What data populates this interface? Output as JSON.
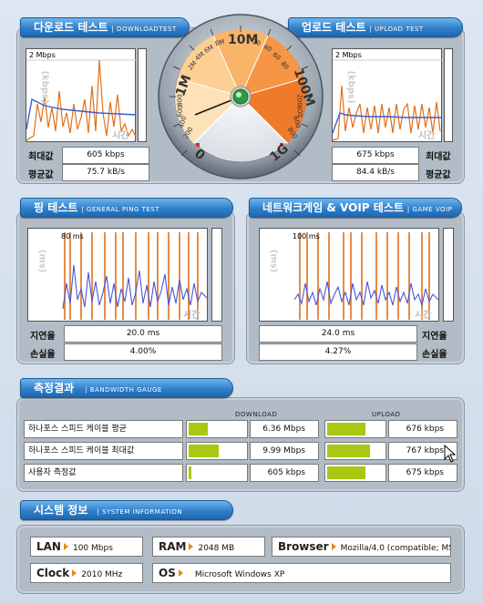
{
  "tabs": {
    "download": {
      "title": "다운로드 테스트",
      "sub": "| DOWNLOADTEST"
    },
    "upload": {
      "title": "업로드 테스트",
      "sub": "| UPLOAD TEST"
    },
    "ping": {
      "title": "핑 테스트",
      "sub": "| GENERAL PING TEST"
    },
    "voip": {
      "title": "네트워크게임 & VOIP 테스트",
      "sub": "| GAME VOIP"
    },
    "results": {
      "title": "측정결과",
      "sub": "| BANDWIDTH GAUGE"
    },
    "sysinfo": {
      "title": "시스템 정보",
      "sub": "| SYSTEM INFORMATION"
    }
  },
  "download": {
    "scale": "2 Mbps",
    "axis_unit": "(kbps)",
    "axis_time": "시간",
    "max_label": "최대값",
    "max_value": "605 kbps",
    "avg_label": "평균값",
    "avg_value": "75.7 kB/s"
  },
  "upload": {
    "scale": "2 Mbps",
    "axis_unit": "(kbps)",
    "axis_time": "시간",
    "max_label": "최대값",
    "max_value": "675 kbps",
    "avg_label": "평균값",
    "avg_value": "84.4 kB/s"
  },
  "ping": {
    "scale": "80 ms",
    "axis_unit": "(ms)",
    "axis_time": "시간",
    "latency_label": "지연율",
    "latency_value": "20.0 ms",
    "loss_label": "손실율",
    "loss_value": "4.00%"
  },
  "voip": {
    "scale": "100 ms",
    "axis_unit": "(ms)",
    "axis_time": "시간",
    "latency_label": "지연율",
    "latency_value": "24.0 ms",
    "loss_label": "손실율",
    "loss_value": "4.27%"
  },
  "gauge": {
    "labels": [
      "0",
      "1M",
      "10M",
      "100M",
      "1G"
    ],
    "small_labels": [
      "200",
      "400",
      "600",
      "800",
      "2M",
      "4M",
      "6M",
      "8M",
      "20",
      "40",
      "60",
      "80",
      "200",
      "400",
      "600",
      "800"
    ],
    "needle_fraction": 0.62
  },
  "results": {
    "col_download": "DOWNLOAD",
    "col_upload": "UPLOAD",
    "rows": [
      {
        "label": "하나포스 스피드 케이블 평균",
        "down": "6.36 Mbps",
        "down_fill": 0.33,
        "up": "676 kbps",
        "up_fill": 0.65
      },
      {
        "label": "하나포스 스피드 케이블 최대값",
        "down": "9.99 Mbps",
        "down_fill": 0.52,
        "up": "767 kbps",
        "up_fill": 0.74
      },
      {
        "label": "사용자 측정값",
        "down": "605 kbps",
        "down_fill": 0.04,
        "up": "675 kbps",
        "up_fill": 0.65
      }
    ]
  },
  "sysinfo": {
    "lan_label": "LAN",
    "lan_value": "100 Mbps",
    "ram_label": "RAM",
    "ram_value": "2048 MB",
    "browser_label": "Browser",
    "browser_value": "Mozilla/4.0 (compatible; MS",
    "clock_label": "Clock",
    "clock_value": "2010 MHz",
    "os_label": "OS",
    "os_value": "Microsoft Windows XP"
  },
  "colors": {
    "download_line": "#e0701a",
    "avg_line": "#3a5fd0",
    "bar": "#a8c812",
    "tab": "#2f7fc9"
  }
}
